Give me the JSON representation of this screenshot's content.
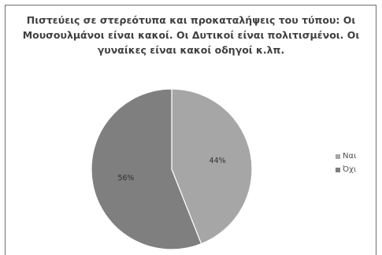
{
  "chart_data": {
    "type": "pie",
    "title_lines": [
      "Πιστεύεις σε στερεότυπα και προκαταλήψεις του τύπου: Οι",
      "Μουσουλμάνοι είναι κακοί. Οι Δυτικοί είναι πολιτισμένοι. Οι",
      "γυναίκες είναι κακοί οδηγοί κ.λπ."
    ],
    "categories": [
      "Ναι",
      "Όχι"
    ],
    "values": [
      44,
      56
    ],
    "labels": [
      "44%",
      "56%"
    ],
    "colors": [
      "#a6a6a6",
      "#7f7f7f"
    ],
    "legend_position": "right"
  }
}
